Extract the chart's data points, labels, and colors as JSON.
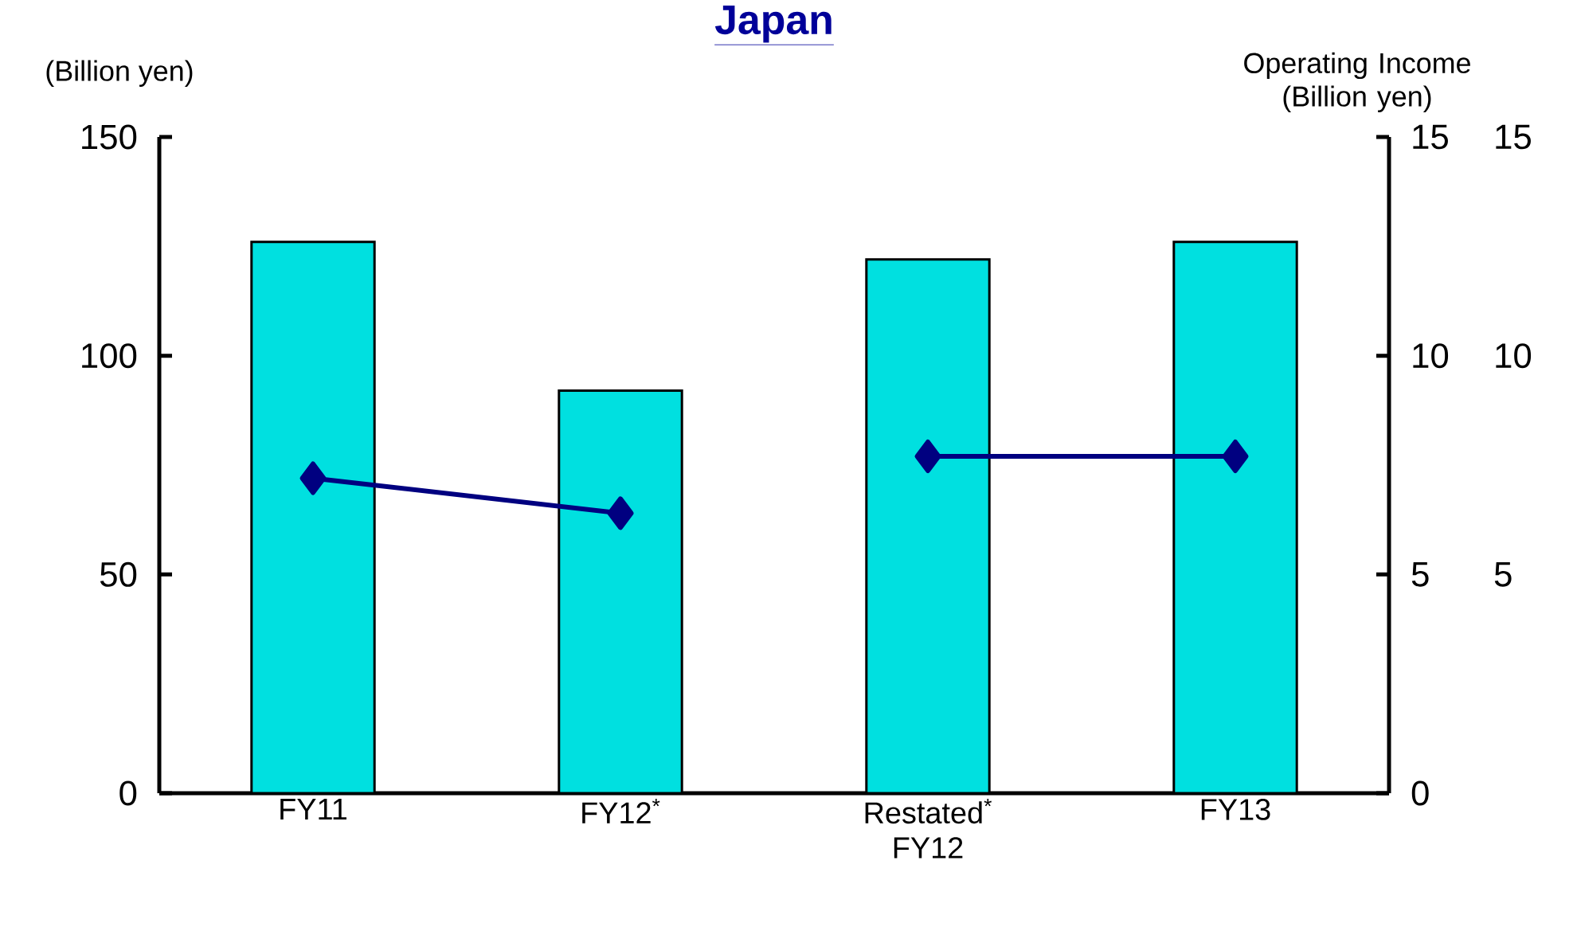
{
  "chart_data": {
    "type": "bar",
    "title": "Japan",
    "ylabel": "(Billion yen)",
    "y2label": "Operating Income (Billion yen)",
    "categories": [
      "FY11",
      "FY12$^{*}$",
      "Restated$^{*}$ FY12",
      "FY13"
    ],
    "series": [
      {
        "color": "#00e0e0",
        "values": [
          126,
          92,
          122,
          126
        ]
      },
      {
        "type": "line",
        "axis": "y2",
        "color": "#000080",
        "values": [
          7.2,
          6.4,
          null,
          null
        ]
      },
      {
        "type": "line",
        "axis": "y2",
        "color": "#000080",
        "values": [
          null,
          null,
          7.7,
          7.7
        ]
      }
    ],
    "ylim": [
      0,
      150
    ],
    "yticks": [
      0,
      50,
      100,
      150
    ],
    "y2lim": [
      0,
      15
    ],
    "y2ticks": [
      0,
      5,
      10,
      15
    ],
    "y3lim": [
      0,
      15
    ],
    "y3ticks": [
      5,
      10,
      15
    ],
    "marker": "diamond",
    "grid": false,
    "legend": false
  }
}
